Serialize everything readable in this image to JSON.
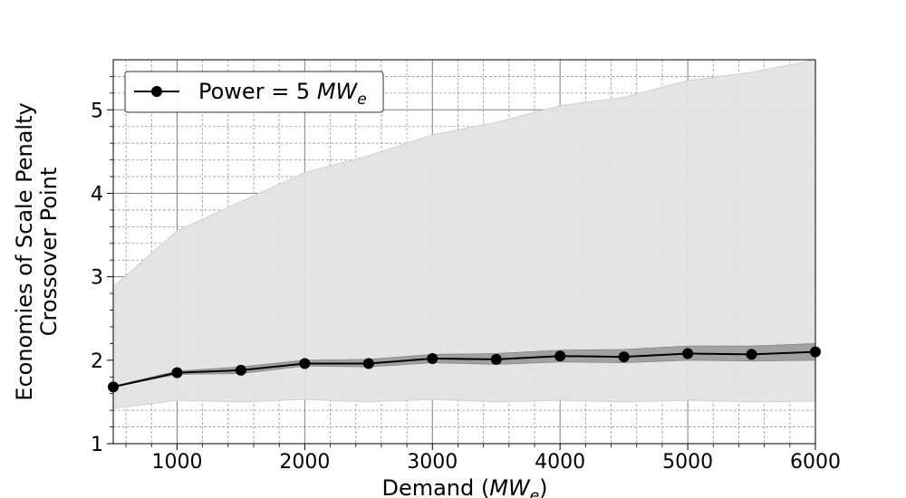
{
  "chart_data": {
    "type": "line",
    "xlabel": "Demand (",
    "xlabel_unit": "MW",
    "xlabel_sub": "e",
    "xlabel_close": ")",
    "ylabel": [
      "Economies of Scale Penalty",
      "Crossover Point"
    ],
    "xlim": [
      500,
      6000
    ],
    "ylim": [
      1,
      5.6
    ],
    "xticks": [
      1000,
      2000,
      3000,
      4000,
      5000,
      6000
    ],
    "yticks": [
      1,
      2,
      3,
      4,
      5
    ],
    "grid": true,
    "legend_position": "top-left",
    "series": [
      {
        "name": "Power = 5 ",
        "name_unit": "MW",
        "name_sub": "e",
        "color": "#000000",
        "x": [
          500,
          1000,
          1500,
          2000,
          2500,
          3000,
          3500,
          4000,
          4500,
          5000,
          5500,
          6000
        ],
        "y": [
          1.68,
          1.85,
          1.88,
          1.96,
          1.96,
          2.02,
          2.01,
          2.05,
          2.04,
          2.08,
          2.07,
          2.1
        ],
        "inner_band": {
          "color": "#999999",
          "lower": [
            1.68,
            1.83,
            1.84,
            1.93,
            1.92,
            1.97,
            1.95,
            1.98,
            1.97,
            2.0,
            1.99,
            2.0
          ],
          "upper": [
            1.69,
            1.87,
            1.92,
            2.0,
            2.01,
            2.07,
            2.08,
            2.12,
            2.13,
            2.17,
            2.17,
            2.2
          ]
        },
        "outer_band": {
          "color": "#e3e3e3",
          "lower": [
            1.42,
            1.52,
            1.5,
            1.53,
            1.5,
            1.53,
            1.5,
            1.52,
            1.5,
            1.52,
            1.5,
            1.51
          ],
          "upper": [
            2.88,
            3.55,
            3.9,
            4.25,
            4.45,
            4.7,
            4.85,
            5.05,
            5.15,
            5.35,
            5.45,
            5.6
          ]
        }
      }
    ]
  }
}
